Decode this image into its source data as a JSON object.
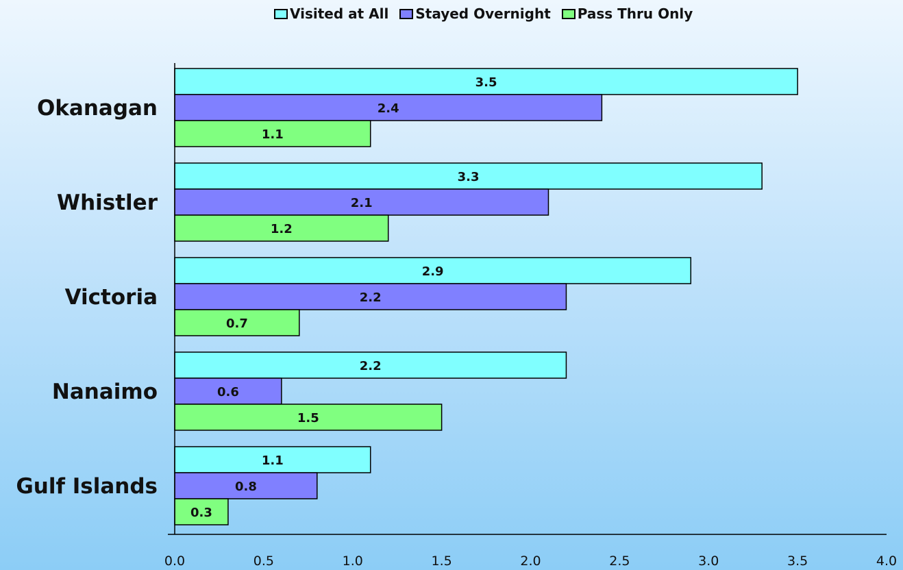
{
  "chart_data": {
    "type": "bar",
    "orientation": "horizontal",
    "title": "",
    "xlabel": "",
    "ylabel": "",
    "categories": [
      "Okanagan",
      "Whistler",
      "Victoria",
      "Nanaimo",
      "Gulf Islands"
    ],
    "series": [
      {
        "name": "Visited at All",
        "color": "#80ffff",
        "values": [
          3.5,
          3.3,
          2.9,
          2.2,
          1.1
        ],
        "labels": [
          "3.5",
          "3.3",
          "2.9",
          "2.2",
          "1.1"
        ]
      },
      {
        "name": "Stayed Overnight",
        "color": "#8080ff",
        "values": [
          2.4,
          2.1,
          2.2,
          0.6,
          0.8
        ],
        "labels": [
          "2.4",
          "2.1",
          "2.2",
          "0.6",
          "0.8"
        ]
      },
      {
        "name": "Pass Thru Only",
        "color": "#80ff80",
        "values": [
          1.1,
          1.2,
          0.7,
          1.5,
          0.3
        ],
        "labels": [
          "1.1",
          "1.2",
          "0.7",
          "1.5",
          "0.3"
        ]
      }
    ],
    "xlim": [
      0,
      4.0
    ],
    "x_ticks": [
      "0.0",
      "0.5",
      "1.0",
      "1.5",
      "2.0",
      "2.5",
      "3.0",
      "3.5",
      "4.0"
    ],
    "grid": false,
    "legend_position": "top-center"
  }
}
